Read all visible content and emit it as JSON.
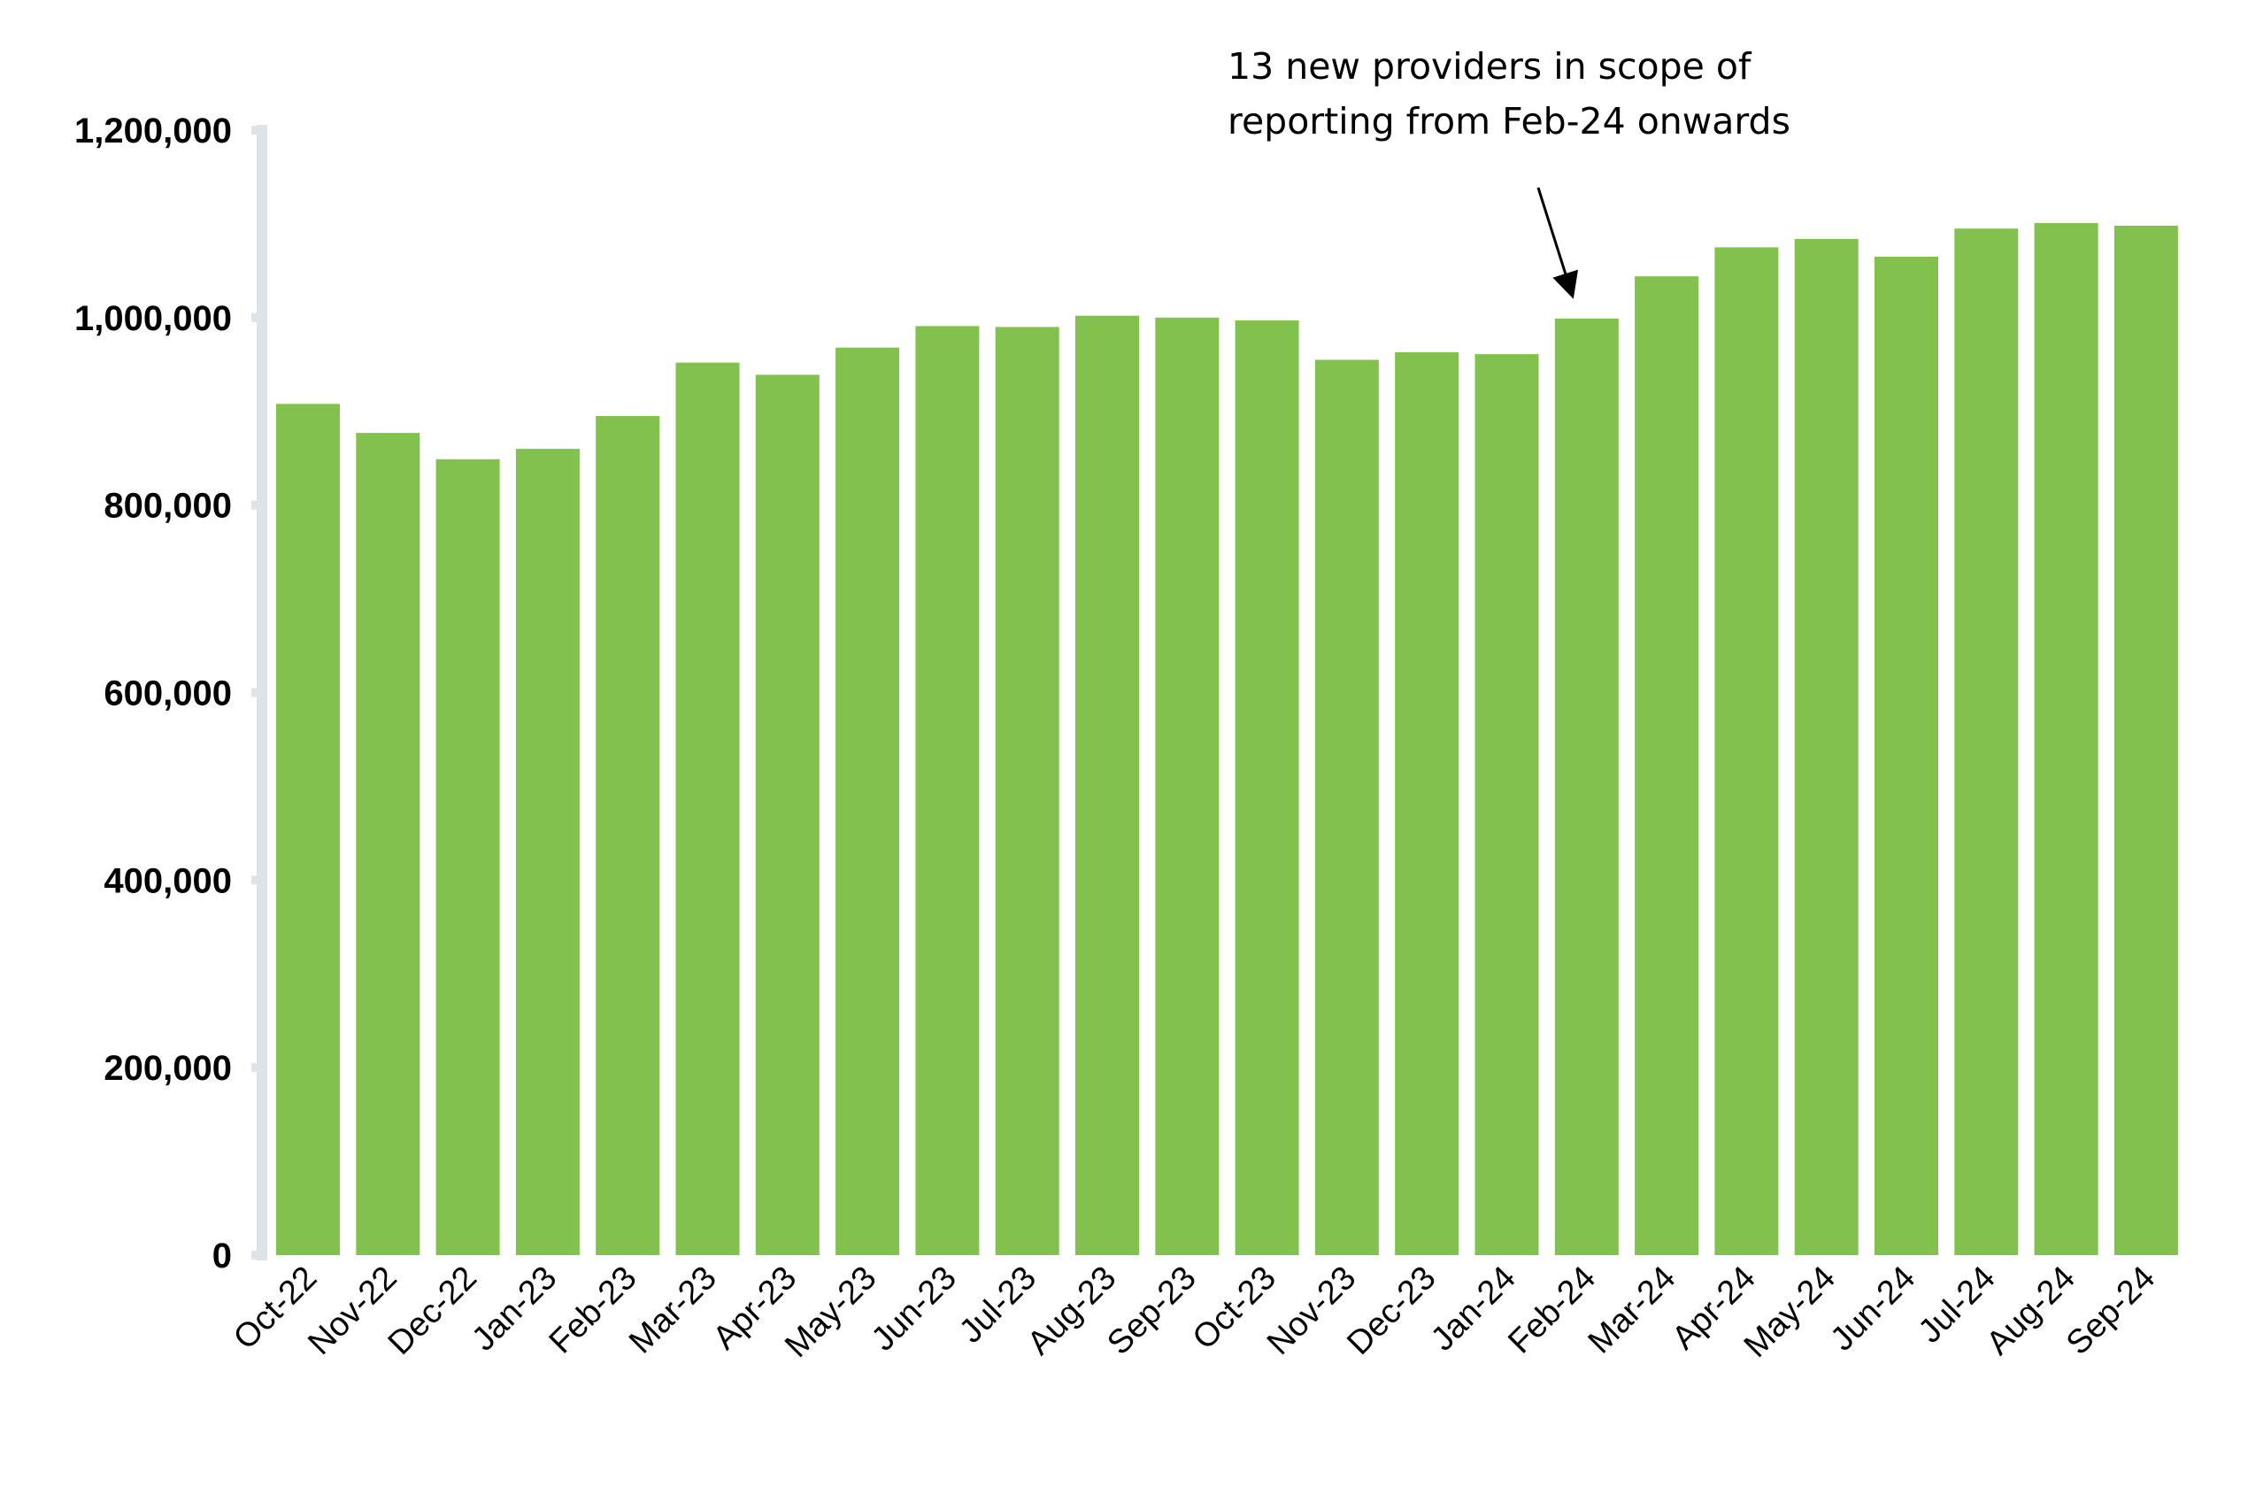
{
  "chart_data": {
    "type": "bar",
    "title": "",
    "xlabel": "",
    "ylabel": "",
    "categories": [
      "Oct-22",
      "Nov-22",
      "Dec-22",
      "Jan-23",
      "Feb-23",
      "Mar-23",
      "Apr-23",
      "May-23",
      "Jun-23",
      "Jul-23",
      "Aug-23",
      "Sep-23",
      "Oct-23",
      "Nov-23",
      "Dec-23",
      "Jan-24",
      "Feb-24",
      "Mar-24",
      "Apr-24",
      "May-24",
      "Jun-24",
      "Jul-24",
      "Aug-24",
      "Sep-24"
    ],
    "values": [
      908000,
      877000,
      849000,
      860000,
      895000,
      952000,
      939000,
      968000,
      991000,
      990000,
      1002000,
      1000000,
      997000,
      955000,
      963000,
      961000,
      999000,
      1044000,
      1075000,
      1084000,
      1065000,
      1095000,
      1101000,
      1098000
    ],
    "ylim": [
      0,
      1200000
    ],
    "yticks": [
      0,
      200000,
      400000,
      600000,
      800000,
      1000000,
      1200000
    ],
    "ytick_labels": [
      "0",
      "200,000",
      "400,000",
      "600,000",
      "800,000",
      "1,000,000",
      "1,200,000"
    ],
    "grid": false,
    "bar_color": "#82c14e",
    "axis_color": "#dde3e6",
    "annotation": {
      "lines": [
        "13 new providers in scope of",
        "reporting from Feb-24 onwards"
      ],
      "target_category": "Feb-24"
    }
  }
}
